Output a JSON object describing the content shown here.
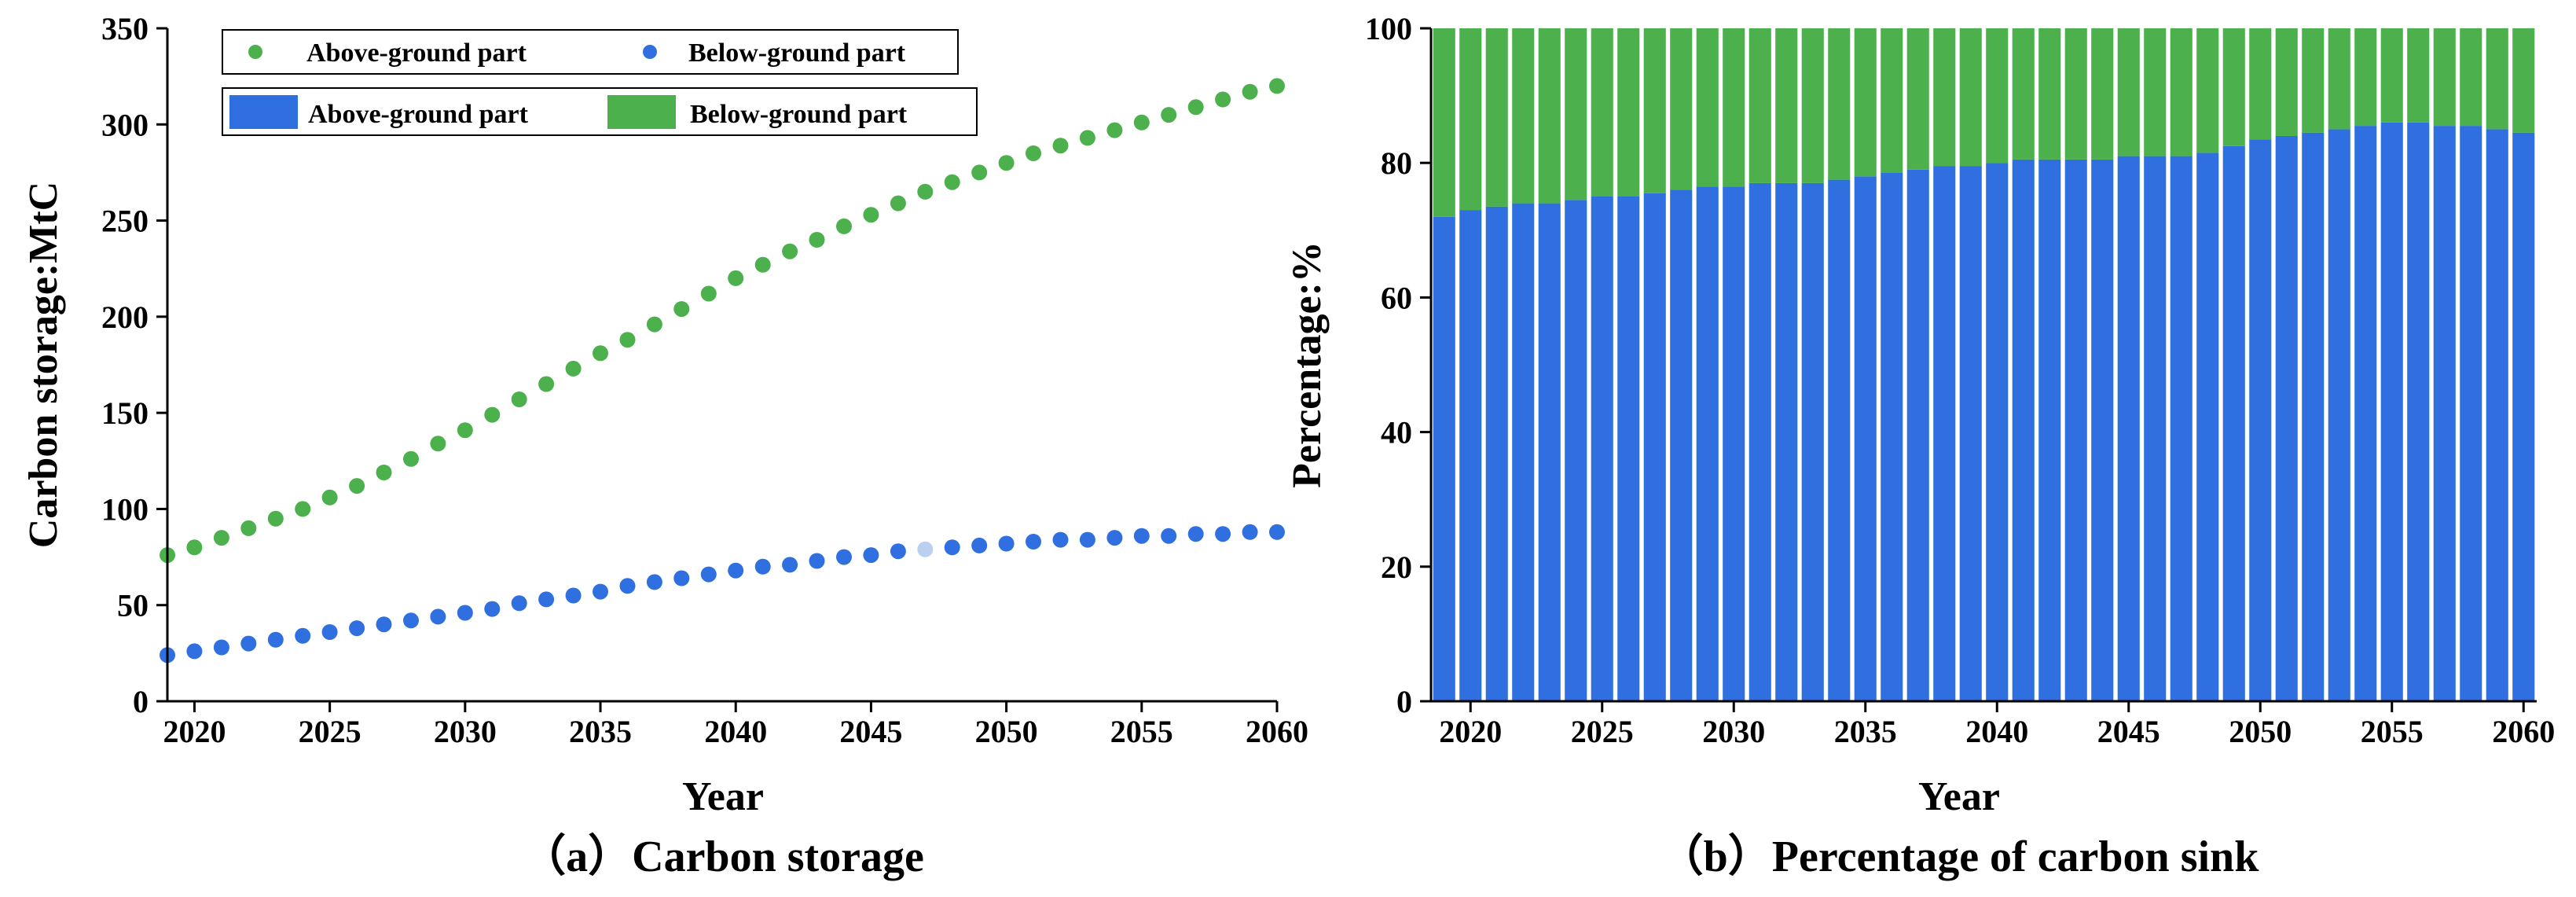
{
  "colors": {
    "blue": "#2F6FE0",
    "green": "#4CB04C",
    "highlight": "#BBD0F0"
  },
  "chart_data": [
    {
      "type": "scatter",
      "caption": "（a）Carbon storage",
      "xlabel": "Year",
      "ylabel": "Carbon storage:MtC",
      "xlim": [
        2019,
        2060
      ],
      "ylim": [
        0,
        350
      ],
      "xticks": [
        2020,
        2025,
        2030,
        2035,
        2040,
        2045,
        2050,
        2055,
        2060
      ],
      "yticks": [
        0,
        50,
        100,
        150,
        200,
        250,
        300,
        350
      ],
      "legend": [
        "Above-ground part",
        "Below-ground part"
      ],
      "legend_position": "top-left",
      "x": [
        2019,
        2020,
        2021,
        2022,
        2023,
        2024,
        2025,
        2026,
        2027,
        2028,
        2029,
        2030,
        2031,
        2032,
        2033,
        2034,
        2035,
        2036,
        2037,
        2038,
        2039,
        2040,
        2041,
        2042,
        2043,
        2044,
        2045,
        2046,
        2047,
        2048,
        2049,
        2050,
        2051,
        2052,
        2053,
        2054,
        2055,
        2056,
        2057,
        2058,
        2059,
        2060
      ],
      "series": [
        {
          "name": "Above-ground part",
          "color": "#4CB04C",
          "values": [
            76,
            80,
            85,
            90,
            95,
            100,
            106,
            112,
            119,
            126,
            134,
            141,
            149,
            157,
            165,
            173,
            181,
            188,
            196,
            204,
            212,
            220,
            227,
            234,
            240,
            247,
            253,
            259,
            265,
            270,
            275,
            280,
            285,
            289,
            293,
            297,
            301,
            305,
            309,
            313,
            317,
            320
          ]
        },
        {
          "name": "Below-ground part",
          "color": "#2F6FE0",
          "values": [
            24,
            26,
            28,
            30,
            32,
            34,
            36,
            38,
            40,
            42,
            44,
            46,
            48,
            51,
            53,
            55,
            57,
            60,
            62,
            64,
            66,
            68,
            70,
            71,
            73,
            75,
            76,
            78,
            79,
            80,
            81,
            82,
            83,
            84,
            84,
            85,
            86,
            86,
            87,
            87,
            88,
            88
          ]
        }
      ]
    },
    {
      "type": "bar",
      "stacked": true,
      "caption": "（b）Percentage of carbon sink",
      "xlabel": "Year",
      "ylabel": "Percentage:%",
      "xlim": [
        2018.5,
        2060.5
      ],
      "ylim": [
        0,
        100
      ],
      "xticks": [
        2020,
        2025,
        2030,
        2035,
        2040,
        2045,
        2050,
        2055,
        2060
      ],
      "yticks": [
        0,
        20,
        40,
        60,
        80,
        100
      ],
      "legend": [
        "Above-ground part",
        "Below-ground part"
      ],
      "categories": [
        2019,
        2020,
        2021,
        2022,
        2023,
        2024,
        2025,
        2026,
        2027,
        2028,
        2029,
        2030,
        2031,
        2032,
        2033,
        2034,
        2035,
        2036,
        2037,
        2038,
        2039,
        2040,
        2041,
        2042,
        2043,
        2044,
        2045,
        2046,
        2047,
        2048,
        2049,
        2050,
        2051,
        2052,
        2053,
        2054,
        2055,
        2056,
        2057,
        2058,
        2059,
        2060
      ],
      "series": [
        {
          "name": "Above-ground part",
          "color": "#2F6FE0",
          "values": [
            72,
            73,
            73.5,
            74,
            74,
            74.5,
            75,
            75,
            75.5,
            76,
            76.5,
            76.5,
            77,
            77,
            77,
            77.5,
            78,
            78.5,
            79,
            79.5,
            79.5,
            80,
            80.5,
            80.5,
            80.5,
            80.5,
            81,
            81,
            81,
            81.5,
            82.5,
            83.5,
            84,
            84.5,
            85,
            85.5,
            86,
            86,
            85.5,
            85.5,
            85,
            84.5
          ]
        },
        {
          "name": "Below-ground part",
          "color": "#4CB04C",
          "values": [
            28,
            27,
            26.5,
            26,
            26,
            25.5,
            25,
            25,
            24.5,
            24,
            23.5,
            23.5,
            23,
            23,
            23,
            22.5,
            22,
            21.5,
            21,
            20.5,
            20.5,
            20,
            19.5,
            19.5,
            19.5,
            19.5,
            19,
            19,
            19,
            18.5,
            17.5,
            16.5,
            16,
            15.5,
            15,
            14.5,
            14,
            14,
            14.5,
            14.5,
            15,
            15.5
          ]
        }
      ]
    }
  ]
}
